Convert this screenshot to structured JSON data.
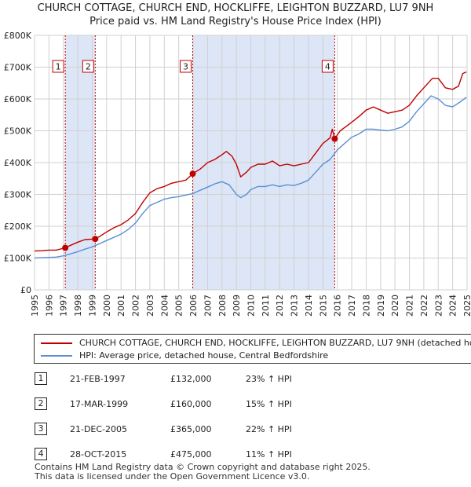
{
  "title_line1": "CHURCH COTTAGE, CHURCH END, HOCKLIFFE, LEIGHTON BUZZARD, LU7 9NH",
  "title_line2": "Price paid vs. HM Land Registry's House Price Index (HPI)",
  "chart_data": {
    "type": "line",
    "title": "CHURCH COTTAGE, CHURCH END, HOCKLIFFE, LEIGHTON BUZZARD, LU7 9NH — Price paid vs. HM Land Registry's House Price Index (HPI)",
    "xlabel": "",
    "ylabel": "",
    "xlim": [
      1995,
      2025
    ],
    "ylim": [
      0,
      800000
    ],
    "grid": true,
    "y_ticks": [
      {
        "value": 0,
        "label": "£0"
      },
      {
        "value": 100000,
        "label": "£100K"
      },
      {
        "value": 200000,
        "label": "£200K"
      },
      {
        "value": 300000,
        "label": "£300K"
      },
      {
        "value": 400000,
        "label": "£400K"
      },
      {
        "value": 500000,
        "label": "£500K"
      },
      {
        "value": 600000,
        "label": "£600K"
      },
      {
        "value": 700000,
        "label": "£700K"
      },
      {
        "value": 800000,
        "label": "£800K"
      }
    ],
    "x_ticks": [
      "1995",
      "1996",
      "1997",
      "1998",
      "1999",
      "2000",
      "2001",
      "2002",
      "2003",
      "2004",
      "2005",
      "2006",
      "2007",
      "2008",
      "2009",
      "2010",
      "2011",
      "2012",
      "2013",
      "2014",
      "2015",
      "2016",
      "2017",
      "2018",
      "2019",
      "2020",
      "2021",
      "2022",
      "2023",
      "2024",
      "2025"
    ],
    "series": [
      {
        "name": "CHURCH COTTAGE, CHURCH END, HOCKLIFFE, LEIGHTON BUZZARD, LU7 9NH (detached house)",
        "color": "#c00000",
        "points": [
          [
            1995,
            122000
          ],
          [
            1995.5,
            123000
          ],
          [
            1996,
            125000
          ],
          [
            1996.5,
            125000
          ],
          [
            1997.13,
            132000
          ],
          [
            1997.5,
            140000
          ],
          [
            1998,
            150000
          ],
          [
            1998.5,
            158000
          ],
          [
            1999.21,
            160000
          ],
          [
            1999.6,
            170000
          ],
          [
            2000,
            182000
          ],
          [
            2000.5,
            195000
          ],
          [
            2001,
            205000
          ],
          [
            2001.5,
            220000
          ],
          [
            2002,
            240000
          ],
          [
            2002.5,
            275000
          ],
          [
            2003,
            305000
          ],
          [
            2003.5,
            318000
          ],
          [
            2004,
            325000
          ],
          [
            2004.5,
            335000
          ],
          [
            2005,
            340000
          ],
          [
            2005.5,
            345000
          ],
          [
            2005.97,
            365000
          ],
          [
            2006.5,
            380000
          ],
          [
            2007,
            400000
          ],
          [
            2007.5,
            410000
          ],
          [
            2008,
            425000
          ],
          [
            2008.3,
            435000
          ],
          [
            2008.7,
            420000
          ],
          [
            2009,
            395000
          ],
          [
            2009.3,
            355000
          ],
          [
            2009.7,
            370000
          ],
          [
            2010,
            385000
          ],
          [
            2010.5,
            395000
          ],
          [
            2011,
            395000
          ],
          [
            2011.5,
            405000
          ],
          [
            2012,
            390000
          ],
          [
            2012.5,
            395000
          ],
          [
            2013,
            390000
          ],
          [
            2013.5,
            395000
          ],
          [
            2014,
            400000
          ],
          [
            2014.5,
            430000
          ],
          [
            2015,
            460000
          ],
          [
            2015.5,
            478000
          ],
          [
            2015.65,
            505000
          ],
          [
            2015.82,
            475000
          ],
          [
            2016.2,
            500000
          ],
          [
            2016.8,
            520000
          ],
          [
            2017.5,
            545000
          ],
          [
            2018,
            565000
          ],
          [
            2018.5,
            575000
          ],
          [
            2019,
            565000
          ],
          [
            2019.5,
            555000
          ],
          [
            2020,
            560000
          ],
          [
            2020.5,
            565000
          ],
          [
            2021,
            580000
          ],
          [
            2021.5,
            610000
          ],
          [
            2022,
            635000
          ],
          [
            2022.6,
            665000
          ],
          [
            2023,
            665000
          ],
          [
            2023.5,
            635000
          ],
          [
            2024,
            630000
          ],
          [
            2024.4,
            640000
          ],
          [
            2024.7,
            680000
          ],
          [
            2024.95,
            685000
          ]
        ]
      },
      {
        "name": "HPI: Average price, detached house, Central Bedfordshire",
        "color": "#5b8fd4",
        "points": [
          [
            1995,
            100000
          ],
          [
            1995.5,
            101000
          ],
          [
            1996,
            102000
          ],
          [
            1996.5,
            103000
          ],
          [
            1997,
            107000
          ],
          [
            1997.5,
            113000
          ],
          [
            1998,
            120000
          ],
          [
            1998.5,
            128000
          ],
          [
            1999,
            135000
          ],
          [
            1999.5,
            145000
          ],
          [
            2000,
            155000
          ],
          [
            2000.5,
            165000
          ],
          [
            2001,
            175000
          ],
          [
            2001.5,
            190000
          ],
          [
            2002,
            210000
          ],
          [
            2002.5,
            240000
          ],
          [
            2003,
            265000
          ],
          [
            2003.5,
            275000
          ],
          [
            2004,
            285000
          ],
          [
            2004.5,
            290000
          ],
          [
            2005,
            293000
          ],
          [
            2005.5,
            298000
          ],
          [
            2006,
            303000
          ],
          [
            2006.5,
            313000
          ],
          [
            2007,
            323000
          ],
          [
            2007.5,
            333000
          ],
          [
            2008,
            340000
          ],
          [
            2008.5,
            330000
          ],
          [
            2009,
            300000
          ],
          [
            2009.3,
            290000
          ],
          [
            2009.7,
            300000
          ],
          [
            2010,
            315000
          ],
          [
            2010.5,
            325000
          ],
          [
            2011,
            325000
          ],
          [
            2011.5,
            330000
          ],
          [
            2012,
            325000
          ],
          [
            2012.5,
            330000
          ],
          [
            2013,
            328000
          ],
          [
            2013.5,
            335000
          ],
          [
            2014,
            345000
          ],
          [
            2014.5,
            370000
          ],
          [
            2015,
            395000
          ],
          [
            2015.5,
            410000
          ],
          [
            2016,
            440000
          ],
          [
            2016.5,
            460000
          ],
          [
            2017,
            480000
          ],
          [
            2017.5,
            490000
          ],
          [
            2018,
            505000
          ],
          [
            2018.5,
            505000
          ],
          [
            2019,
            502000
          ],
          [
            2019.5,
            500000
          ],
          [
            2020,
            505000
          ],
          [
            2020.5,
            512000
          ],
          [
            2021,
            530000
          ],
          [
            2021.5,
            560000
          ],
          [
            2022,
            585000
          ],
          [
            2022.5,
            610000
          ],
          [
            2023,
            600000
          ],
          [
            2023.5,
            580000
          ],
          [
            2024,
            575000
          ],
          [
            2024.5,
            590000
          ],
          [
            2024.95,
            605000
          ]
        ]
      }
    ],
    "sales": [
      {
        "label": "1",
        "x": 1997.13,
        "price": 132000
      },
      {
        "label": "2",
        "x": 1999.21,
        "price": 160000
      },
      {
        "label": "3",
        "x": 2005.97,
        "price": 365000
      },
      {
        "label": "4",
        "x": 2015.82,
        "price": 475000
      }
    ],
    "shaded_spans": [
      [
        1997.13,
        1999.21
      ],
      [
        2005.97,
        2015.82
      ]
    ]
  },
  "legend": {
    "series_1": "CHURCH COTTAGE, CHURCH END, HOCKLIFFE, LEIGHTON BUZZARD, LU7 9NH (detached house)",
    "series_2": "HPI: Average price, detached house, Central Bedfordshire"
  },
  "sales_table": [
    {
      "num": "1",
      "date": "21-FEB-1997",
      "price": "£132,000",
      "hpi": "23% ↑ HPI"
    },
    {
      "num": "2",
      "date": "17-MAR-1999",
      "price": "£160,000",
      "hpi": "15% ↑ HPI"
    },
    {
      "num": "3",
      "date": "21-DEC-2005",
      "price": "£365,000",
      "hpi": "22% ↑ HPI"
    },
    {
      "num": "4",
      "date": "28-OCT-2015",
      "price": "£475,000",
      "hpi": "11% ↑ HPI"
    }
  ],
  "footer": {
    "line1": "Contains HM Land Registry data © Crown copyright and database right 2025.",
    "line2": "This data is licensed under the Open Government Licence v3.0."
  },
  "colors": {
    "property": "#c00000",
    "hpi": "#5b8fd4",
    "shade": "#dde6f7",
    "grid": "#d0d0d0"
  }
}
